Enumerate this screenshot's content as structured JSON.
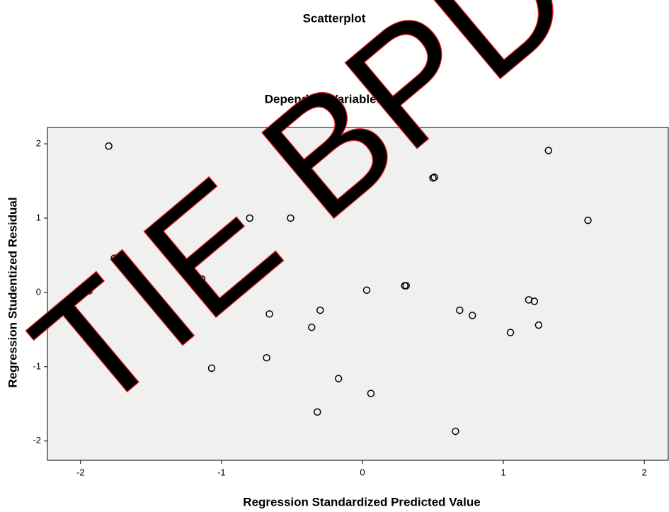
{
  "chart_data": {
    "type": "scatter",
    "title": "Scatterplot",
    "subtitle": "Dependent Variable: ISR",
    "x_label": "Regression Standardized Predicted Value",
    "y_label": "Regression Studentized Residual",
    "watermark": "TIE BPD J",
    "xlim": [
      -2.235,
      2.175
    ],
    "ylim": [
      -2.26,
      2.22
    ],
    "xticks": [
      -2,
      -1,
      0,
      1,
      2
    ],
    "yticks": [
      -2,
      -1,
      0,
      1,
      2
    ],
    "grid": false,
    "color": "#000000",
    "series": [
      {
        "x": [
          -1.8,
          1.32,
          0.5,
          0.51,
          -0.8,
          -0.51,
          1.6,
          -1.76,
          -1.14,
          -1.94,
          0.03,
          0.3,
          0.31,
          -0.66,
          -0.3,
          -0.36,
          0.69,
          0.78,
          1.18,
          1.22,
          1.25,
          1.05,
          -1.07,
          -0.68,
          -0.17,
          0.06,
          -0.32,
          0.66
        ],
        "values": [
          1.97,
          1.91,
          1.54,
          1.55,
          1.0,
          1.0,
          0.97,
          0.46,
          0.18,
          0.02,
          0.03,
          0.09,
          0.09,
          -0.29,
          -0.24,
          -0.47,
          -0.24,
          -0.31,
          -0.1,
          -0.12,
          -0.44,
          -0.54,
          -1.02,
          -0.88,
          -1.16,
          -1.36,
          -1.61,
          -1.87
        ]
      }
    ]
  }
}
